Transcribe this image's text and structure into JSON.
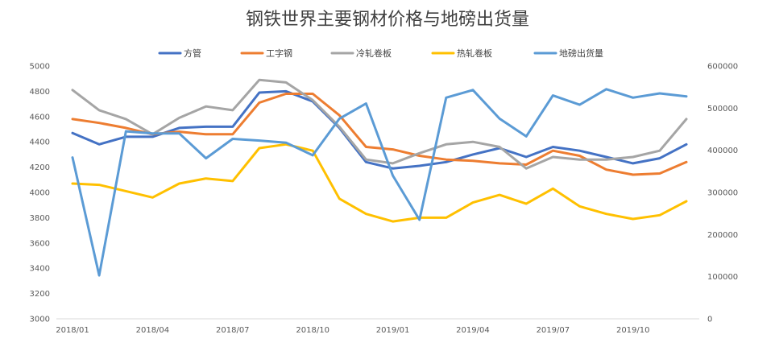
{
  "chart_data": {
    "type": "line",
    "title": "钢铁世界主要钢材价格与地磅出货量",
    "x": [
      "2018/01",
      "2018/02",
      "2018/03",
      "2018/04",
      "2018/05",
      "2018/06",
      "2018/07",
      "2018/08",
      "2018/09",
      "2018/10",
      "2018/11",
      "2018/12",
      "2019/01",
      "2019/02",
      "2019/03",
      "2019/04",
      "2019/05",
      "2019/06",
      "2019/07",
      "2019/08",
      "2019/09",
      "2019/10",
      "2019/11",
      "2019/12"
    ],
    "x_tick_labels": [
      "2018/01",
      "2018/04",
      "2018/07",
      "2018/10",
      "2019/01",
      "2019/04",
      "2019/07",
      "2019/10"
    ],
    "x_tick_indices": [
      0,
      3,
      6,
      9,
      12,
      15,
      18,
      21
    ],
    "y_left": {
      "min": 3000,
      "max": 5000,
      "step": 200,
      "ticks": [
        "3000",
        "3200",
        "3400",
        "3600",
        "3800",
        "4000",
        "4200",
        "4400",
        "4600",
        "4800",
        "5000"
      ]
    },
    "y_right": {
      "min": 0,
      "max": 600000,
      "step": 100000,
      "ticks": [
        "0",
        "100000",
        "200000",
        "300000",
        "400000",
        "500000",
        "600000"
      ]
    },
    "grid": false,
    "legend_position": "top",
    "series": [
      {
        "name": "方管",
        "axis": "left",
        "color": "#4472c4",
        "values": [
          4470,
          4380,
          4440,
          4440,
          4510,
          4520,
          4520,
          4790,
          4800,
          4720,
          4510,
          4240,
          4190,
          4210,
          4240,
          4300,
          4350,
          4280,
          4360,
          4330,
          4280,
          4230,
          4270,
          4380
        ]
      },
      {
        "name": "工字钢",
        "axis": "left",
        "color": "#ed7d31",
        "values": [
          4580,
          4550,
          4510,
          4460,
          4480,
          4460,
          4460,
          4710,
          4780,
          4780,
          4610,
          4360,
          4340,
          4290,
          4260,
          4250,
          4230,
          4220,
          4330,
          4290,
          4180,
          4140,
          4150,
          4240
        ]
      },
      {
        "name": "冷轧卷板",
        "axis": "left",
        "color": "#a5a5a5",
        "values": [
          4810,
          4650,
          4580,
          4460,
          4590,
          4680,
          4650,
          4890,
          4870,
          4730,
          4520,
          4260,
          4230,
          4310,
          4380,
          4400,
          4360,
          4190,
          4280,
          4260,
          4260,
          4280,
          4330,
          4580
        ]
      },
      {
        "name": "热轧卷板",
        "axis": "left",
        "color": "#ffc000",
        "values": [
          4070,
          4060,
          4010,
          3960,
          4070,
          4110,
          4090,
          4350,
          4380,
          4330,
          3950,
          3830,
          3770,
          3800,
          3800,
          3920,
          3980,
          3910,
          4030,
          3890,
          3830,
          3790,
          3820,
          3930
        ]
      },
      {
        "name": "地磅出货量",
        "axis": "right",
        "color": "#5b9bd5",
        "values": [
          383000,
          103000,
          445000,
          440000,
          440000,
          381000,
          427000,
          423000,
          418000,
          388000,
          475000,
          511000,
          340000,
          235000,
          525000,
          543000,
          475000,
          433000,
          530000,
          508000,
          545000,
          525000,
          535000,
          528000
        ]
      }
    ]
  }
}
